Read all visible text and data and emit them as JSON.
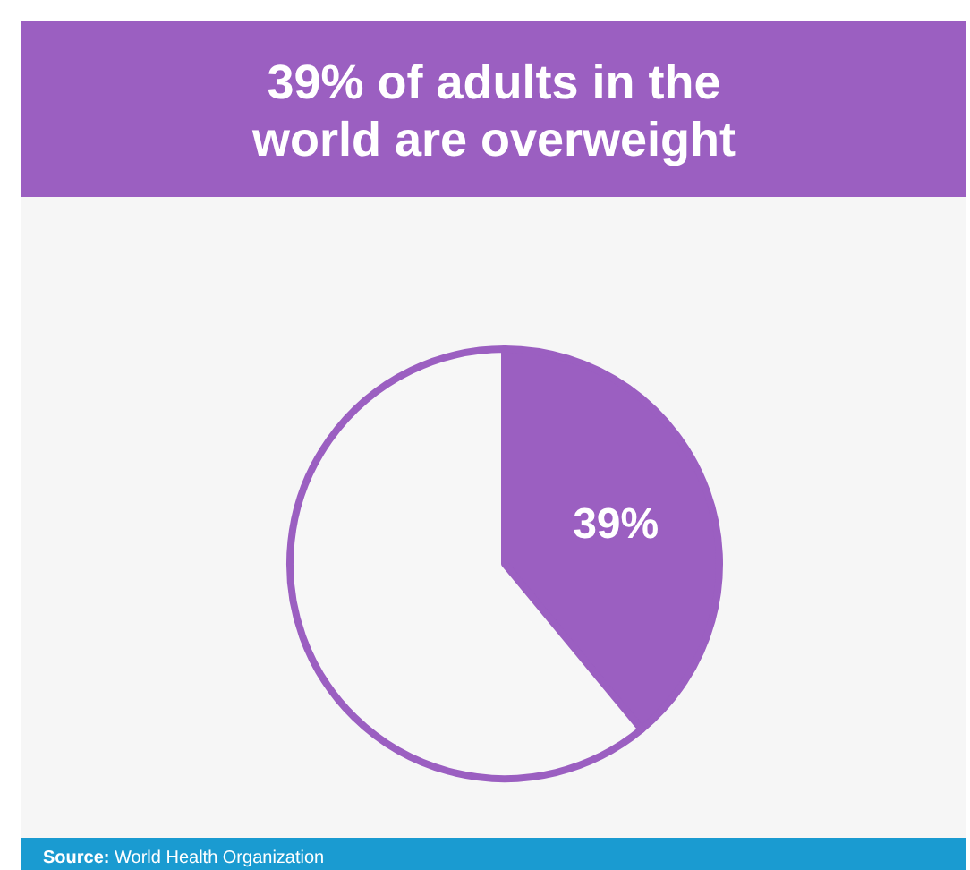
{
  "chart_data": {
    "type": "pie",
    "title": "39% of adults in the world are overweight",
    "categories": [
      null,
      null
    ],
    "values": [
      39,
      61
    ],
    "colors": [
      "#9b5fc1",
      "#f7f7f7"
    ],
    "value_labels": [
      "39%",
      null
    ],
    "annotations": [
      "Source: World Health Organization"
    ]
  }
}
